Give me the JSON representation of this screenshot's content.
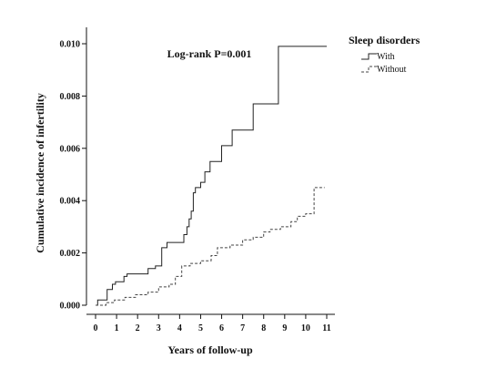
{
  "chart_data": {
    "type": "line",
    "step": true,
    "xlabel": "Years of follow-up",
    "ylabel": "Cumulative incidence of infertility",
    "annotation": "Log-rank P=0.001",
    "xlim": [
      0,
      11
    ],
    "ylim": [
      0,
      0.01
    ],
    "x_ticks": [
      0,
      1,
      2,
      3,
      4,
      5,
      6,
      7,
      8,
      9,
      10,
      11
    ],
    "y_ticks": [
      "0.000",
      "0.002",
      "0.004",
      "0.006",
      "0.008",
      "0.010"
    ],
    "grid": false,
    "legend": {
      "title": "Sleep disorders",
      "position": "top-right, outside plot",
      "entries": [
        "With",
        "Without"
      ]
    },
    "series": [
      {
        "name": "With",
        "line_style": "solid",
        "color": "#222222",
        "x": [
          0,
          0.1,
          0.4,
          0.55,
          0.8,
          0.95,
          1.35,
          1.5,
          2.0,
          2.5,
          2.85,
          3.15,
          3.4,
          4.0,
          4.2,
          4.35,
          4.45,
          4.55,
          4.65,
          4.75,
          4.85,
          5.0,
          5.2,
          5.45,
          6.0,
          6.5,
          7.5,
          8.7,
          11
        ],
        "y": [
          0,
          0.0002,
          0.0002,
          0.0006,
          0.0008,
          0.0009,
          0.0011,
          0.0012,
          0.0012,
          0.0014,
          0.0015,
          0.0022,
          0.0024,
          0.0024,
          0.0027,
          0.003,
          0.0033,
          0.0036,
          0.0043,
          0.0045,
          0.0045,
          0.0047,
          0.0051,
          0.0055,
          0.0061,
          0.0067,
          0.0077,
          0.0099,
          0.0099
        ]
      },
      {
        "name": "Without",
        "line_style": "dashed",
        "color": "#444444",
        "x": [
          0,
          0.5,
          0.9,
          1.4,
          1.9,
          2.5,
          3.0,
          3.5,
          3.8,
          4.1,
          4.5,
          5.0,
          5.5,
          5.8,
          6.4,
          7.0,
          7.5,
          8.0,
          8.3,
          8.8,
          9.3,
          9.6,
          10.0,
          10.4,
          10.9
        ],
        "y": [
          0,
          0.0001,
          0.0002,
          0.0003,
          0.0004,
          0.0005,
          0.0007,
          0.0008,
          0.0011,
          0.0015,
          0.0016,
          0.0017,
          0.0019,
          0.0022,
          0.0023,
          0.0025,
          0.0026,
          0.0028,
          0.0029,
          0.003,
          0.0032,
          0.0034,
          0.0035,
          0.0045,
          0.0045
        ]
      }
    ]
  }
}
